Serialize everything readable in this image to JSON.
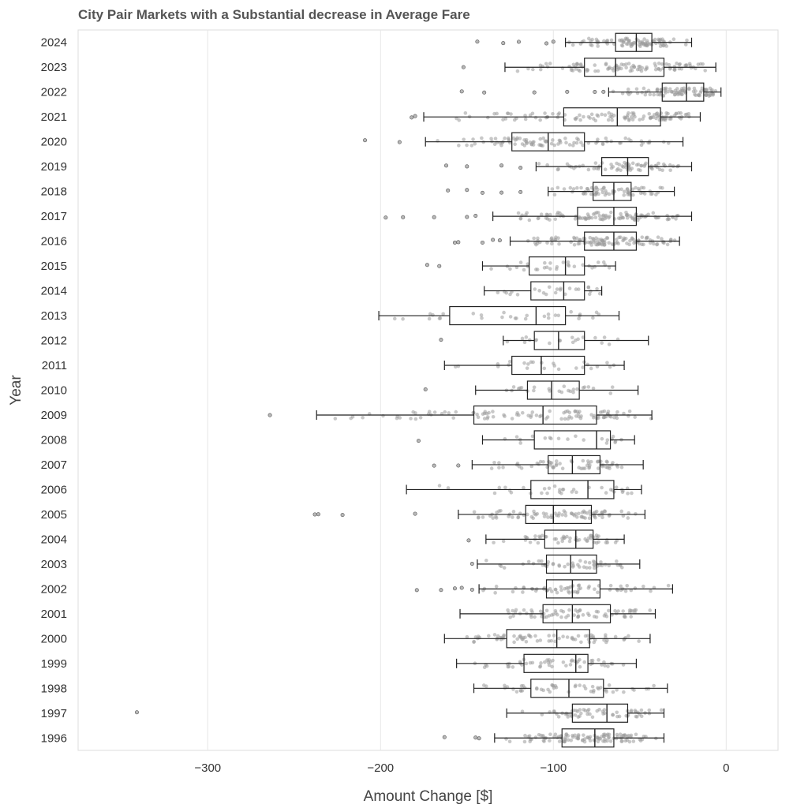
{
  "chart_data": {
    "type": "box",
    "orientation": "horizontal",
    "title": "City Pair Markets with a Substantial decrease in Average Fare",
    "xlabel": "Amount Change [$]",
    "ylabel": "Year",
    "xlim": [
      -375,
      30
    ],
    "xticks": [
      -300,
      -200,
      -100,
      0
    ],
    "xtick_labels": [
      "−300",
      "−200",
      "−100",
      "0"
    ],
    "grid": "vertical",
    "colors": {
      "points": "#9a9a9a",
      "box_edge": "#222222",
      "grid": "#e6e6e6",
      "frame": "#dddddd"
    },
    "categories": [
      "2024",
      "2023",
      "2022",
      "2021",
      "2020",
      "2019",
      "2018",
      "2017",
      "2016",
      "2015",
      "2014",
      "2013",
      "2012",
      "2011",
      "2010",
      "2009",
      "2008",
      "2007",
      "2006",
      "2005",
      "2004",
      "2003",
      "2002",
      "2001",
      "2000",
      "1999",
      "1998",
      "1997",
      "1996"
    ],
    "boxes": [
      {
        "year": "2024",
        "whislo": -93,
        "q1": -64,
        "med": -52,
        "q3": -43,
        "whishi": -20,
        "outliers": [
          -144,
          -129,
          -120,
          -104,
          -100
        ],
        "n": 90
      },
      {
        "year": "2023",
        "whislo": -128,
        "q1": -82,
        "med": -64,
        "q3": -36,
        "whishi": -6,
        "outliers": [
          -152
        ],
        "n": 100
      },
      {
        "year": "2022",
        "whislo": -68,
        "q1": -37,
        "med": -23,
        "q3": -13,
        "whishi": -3,
        "outliers": [
          -153,
          -140,
          -111,
          -92,
          -76,
          -71
        ],
        "n": 90
      },
      {
        "year": "2021",
        "whislo": -175,
        "q1": -94,
        "med": -63,
        "q3": -38,
        "whishi": -15,
        "outliers": [
          -182,
          -180
        ],
        "n": 110
      },
      {
        "year": "2020",
        "whislo": -174,
        "q1": -124,
        "med": -103,
        "q3": -82,
        "whishi": -25,
        "outliers": [
          -209,
          -189
        ],
        "n": 90
      },
      {
        "year": "2019",
        "whislo": -110,
        "q1": -72,
        "med": -57,
        "q3": -45,
        "whishi": -20,
        "outliers": [
          -162,
          -150,
          -130,
          -119
        ],
        "n": 70
      },
      {
        "year": "2018",
        "whislo": -103,
        "q1": -77,
        "med": -65,
        "q3": -55,
        "whishi": -30,
        "outliers": [
          -161,
          -150,
          -141,
          -130,
          -119
        ],
        "n": 70
      },
      {
        "year": "2017",
        "whislo": -135,
        "q1": -86,
        "med": -65,
        "q3": -52,
        "whishi": -20,
        "outliers": [
          -197,
          -187,
          -169,
          -150,
          -145
        ],
        "n": 100
      },
      {
        "year": "2016",
        "whislo": -125,
        "q1": -82,
        "med": -65,
        "q3": -52,
        "whishi": -27,
        "outliers": [
          -157,
          -155,
          -141,
          -135,
          -131
        ],
        "n": 110
      },
      {
        "year": "2015",
        "whislo": -141,
        "q1": -114,
        "med": -93,
        "q3": -82,
        "whishi": -64,
        "outliers": [
          -173,
          -166
        ],
        "n": 30
      },
      {
        "year": "2014",
        "whislo": -140,
        "q1": -113,
        "med": -94,
        "q3": -82,
        "whishi": -72,
        "outliers": [],
        "n": 25
      },
      {
        "year": "2013",
        "whislo": -201,
        "q1": -160,
        "med": -110,
        "q3": -93,
        "whishi": -62,
        "outliers": [],
        "n": 30
      },
      {
        "year": "2012",
        "whislo": -129,
        "q1": -111,
        "med": -97,
        "q3": -82,
        "whishi": -45,
        "outliers": [
          -165
        ],
        "n": 20
      },
      {
        "year": "2011",
        "whislo": -163,
        "q1": -124,
        "med": -107,
        "q3": -82,
        "whishi": -59,
        "outliers": [],
        "n": 25
      },
      {
        "year": "2010",
        "whislo": -145,
        "q1": -115,
        "med": -101,
        "q3": -85,
        "whishi": -51,
        "outliers": [
          -174
        ],
        "n": 25
      },
      {
        "year": "2009",
        "whislo": -237,
        "q1": -146,
        "med": -106,
        "q3": -75,
        "whishi": -43,
        "outliers": [
          -264
        ],
        "n": 100
      },
      {
        "year": "2008",
        "whislo": -141,
        "q1": -111,
        "med": -75,
        "q3": -67,
        "whishi": -53,
        "outliers": [
          -178
        ],
        "n": 20
      },
      {
        "year": "2007",
        "whislo": -147,
        "q1": -103,
        "med": -89,
        "q3": -73,
        "whishi": -48,
        "outliers": [
          -169,
          -155
        ],
        "n": 60
      },
      {
        "year": "2006",
        "whislo": -185,
        "q1": -113,
        "med": -80,
        "q3": -65,
        "whishi": -49,
        "outliers": [],
        "n": 35
      },
      {
        "year": "2005",
        "whislo": -155,
        "q1": -116,
        "med": -100,
        "q3": -78,
        "whishi": -47,
        "outliers": [
          -238,
          -236,
          -222,
          -180
        ],
        "n": 80
      },
      {
        "year": "2004",
        "whislo": -139,
        "q1": -105,
        "med": -87,
        "q3": -77,
        "whishi": -59,
        "outliers": [
          -149
        ],
        "n": 50
      },
      {
        "year": "2003",
        "whislo": -144,
        "q1": -104,
        "med": -90,
        "q3": -75,
        "whishi": -50,
        "outliers": [
          -147
        ],
        "n": 50
      },
      {
        "year": "2002",
        "whislo": -143,
        "q1": -104,
        "med": -89,
        "q3": -73,
        "whishi": -31,
        "outliers": [
          -179,
          -165,
          -157,
          -153,
          -147
        ],
        "n": 60
      },
      {
        "year": "2001",
        "whislo": -154,
        "q1": -106,
        "med": -89,
        "q3": -67,
        "whishi": -41,
        "outliers": [],
        "n": 70
      },
      {
        "year": "2000",
        "whislo": -163,
        "q1": -127,
        "med": -98,
        "q3": -79,
        "whishi": -44,
        "outliers": [],
        "n": 70
      },
      {
        "year": "1999",
        "whislo": -156,
        "q1": -117,
        "med": -87,
        "q3": -80,
        "whishi": -52,
        "outliers": [],
        "n": 50
      },
      {
        "year": "1998",
        "whislo": -146,
        "q1": -113,
        "med": -91,
        "q3": -71,
        "whishi": -34,
        "outliers": [],
        "n": 50
      },
      {
        "year": "1997",
        "whislo": -127,
        "q1": -89,
        "med": -69,
        "q3": -57,
        "whishi": -36,
        "outliers": [
          -341
        ],
        "n": 60
      },
      {
        "year": "1996",
        "whislo": -134,
        "q1": -95,
        "med": -76,
        "q3": -65,
        "whishi": -36,
        "outliers": [
          -163,
          -145,
          -143
        ],
        "n": 110
      }
    ]
  }
}
